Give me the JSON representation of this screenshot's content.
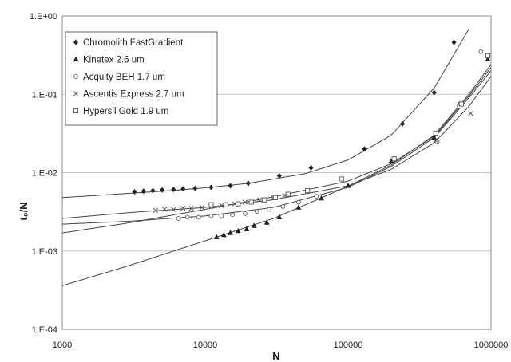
{
  "chart_data": {
    "type": "scatter",
    "xlabel": "N",
    "ylabel": "t₀/N",
    "xscale": "log",
    "yscale": "log",
    "xlim": [
      1000,
      1000000
    ],
    "ylim": [
      0.0001,
      1
    ],
    "x_ticks": [
      {
        "value": 1000,
        "label": "1000"
      },
      {
        "value": 10000,
        "label": "10000"
      },
      {
        "value": 100000,
        "label": "100000"
      },
      {
        "value": 1000000,
        "label": "1000000"
      }
    ],
    "y_ticks": [
      {
        "value": 0.0001,
        "label": "1.E-04"
      },
      {
        "value": 0.001,
        "label": "1.E-03"
      },
      {
        "value": 0.01,
        "label": "1.E-02"
      },
      {
        "value": 0.1,
        "label": "1.E-01"
      },
      {
        "value": 1,
        "label": "1.E+00"
      }
    ],
    "grid": "horizontal",
    "legend_position": "top-left",
    "colors": {
      "points": "#222222",
      "curves": "#444444",
      "grid": "#c8c8c8",
      "frame": "#888888"
    },
    "series": [
      {
        "name": "Chromolith FastGradient",
        "marker": "diamond",
        "points": [
          [
            3200,
            0.0057
          ],
          [
            3700,
            0.0058
          ],
          [
            4300,
            0.0059
          ],
          [
            5000,
            0.006
          ],
          [
            6000,
            0.0061
          ],
          [
            7000,
            0.0062
          ],
          [
            8500,
            0.0063
          ],
          [
            11000,
            0.0065
          ],
          [
            15000,
            0.0068
          ],
          [
            20000,
            0.0073
          ],
          [
            33000,
            0.0091
          ],
          [
            55000,
            0.0115
          ],
          [
            130000,
            0.02
          ],
          [
            240000,
            0.042
          ],
          [
            400000,
            0.105
          ],
          [
            550000,
            0.46
          ]
        ],
        "curve": [
          [
            1000,
            0.0048
          ],
          [
            2000,
            0.0052
          ],
          [
            5000,
            0.0058
          ],
          [
            10000,
            0.0064
          ],
          [
            20000,
            0.0073
          ],
          [
            50000,
            0.0097
          ],
          [
            100000,
            0.0145
          ],
          [
            200000,
            0.03
          ],
          [
            400000,
            0.12
          ],
          [
            700000,
            0.68
          ]
        ]
      },
      {
        "name": "Kinetex 2.6 um",
        "marker": "triangle",
        "points": [
          [
            12000,
            0.0015
          ],
          [
            13500,
            0.0016
          ],
          [
            15000,
            0.0017
          ],
          [
            17000,
            0.0018
          ],
          [
            19500,
            0.0019
          ],
          [
            22000,
            0.0021
          ],
          [
            27000,
            0.0023
          ],
          [
            33000,
            0.0027
          ],
          [
            45000,
            0.0036
          ],
          [
            65000,
            0.0047
          ],
          [
            100000,
            0.0068
          ],
          [
            200000,
            0.014
          ],
          [
            400000,
            0.028
          ],
          [
            600000,
            0.075
          ],
          [
            950000,
            0.28
          ]
        ],
        "curve": [
          [
            1000,
            0.00036
          ],
          [
            3000,
            0.00066
          ],
          [
            10000,
            0.00135
          ],
          [
            30000,
            0.0026
          ],
          [
            100000,
            0.0067
          ],
          [
            200000,
            0.0125
          ],
          [
            400000,
            0.03
          ],
          [
            700000,
            0.1
          ],
          [
            1000000,
            0.24
          ]
        ]
      },
      {
        "name": "Acquity BEH 1.7 um",
        "marker": "circle",
        "points": [
          [
            6500,
            0.0026
          ],
          [
            7500,
            0.0027
          ],
          [
            9000,
            0.0027
          ],
          [
            11000,
            0.0028
          ],
          [
            13000,
            0.0028
          ],
          [
            15500,
            0.0029
          ],
          [
            19000,
            0.003
          ],
          [
            23000,
            0.0032
          ],
          [
            28000,
            0.0034
          ],
          [
            35000,
            0.0037
          ],
          [
            45000,
            0.0042
          ],
          [
            60000,
            0.005
          ],
          [
            420000,
            0.025
          ],
          [
            600000,
            0.07
          ],
          [
            850000,
            0.35
          ]
        ],
        "curve": [
          [
            1000,
            0.0022
          ],
          [
            3000,
            0.0024
          ],
          [
            10000,
            0.0028
          ],
          [
            30000,
            0.0036
          ],
          [
            100000,
            0.0065
          ],
          [
            200000,
            0.012
          ],
          [
            400000,
            0.028
          ],
          [
            700000,
            0.09
          ],
          [
            1000000,
            0.2
          ]
        ]
      },
      {
        "name": "Ascentis Express 2.7 um",
        "marker": "x",
        "points": [
          [
            4500,
            0.0033
          ],
          [
            5200,
            0.0034
          ],
          [
            6000,
            0.0034
          ],
          [
            7000,
            0.0035
          ],
          [
            8000,
            0.0035
          ],
          [
            9500,
            0.0036
          ],
          [
            11000,
            0.0037
          ],
          [
            13000,
            0.0038
          ],
          [
            16000,
            0.004
          ],
          [
            19000,
            0.0042
          ],
          [
            24000,
            0.0045
          ],
          [
            30000,
            0.0048
          ],
          [
            36000,
            0.0051
          ],
          [
            410000,
            0.026
          ],
          [
            720000,
            0.057
          ]
        ],
        "curve": [
          [
            1000,
            0.0026
          ],
          [
            3000,
            0.0031
          ],
          [
            10000,
            0.0036
          ],
          [
            30000,
            0.0045
          ],
          [
            100000,
            0.0068
          ],
          [
            200000,
            0.011
          ],
          [
            400000,
            0.024
          ],
          [
            700000,
            0.07
          ],
          [
            1000000,
            0.17
          ]
        ]
      },
      {
        "name": "Hypersil Gold 1.9 um",
        "marker": "square",
        "points": [
          [
            11000,
            0.0039
          ],
          [
            14000,
            0.0039
          ],
          [
            17000,
            0.004
          ],
          [
            21000,
            0.0042
          ],
          [
            26000,
            0.0045
          ],
          [
            31000,
            0.0048
          ],
          [
            38000,
            0.0053
          ],
          [
            52000,
            0.0059
          ],
          [
            90000,
            0.0083
          ],
          [
            210000,
            0.015
          ],
          [
            410000,
            0.032
          ],
          [
            620000,
            0.075
          ],
          [
            950000,
            0.31
          ]
        ],
        "curve": [
          [
            1000,
            0.0017
          ],
          [
            3000,
            0.0023
          ],
          [
            10000,
            0.0034
          ],
          [
            30000,
            0.0049
          ],
          [
            100000,
            0.0078
          ],
          [
            200000,
            0.013
          ],
          [
            400000,
            0.029
          ],
          [
            700000,
            0.095
          ],
          [
            1000000,
            0.22
          ]
        ]
      }
    ]
  }
}
